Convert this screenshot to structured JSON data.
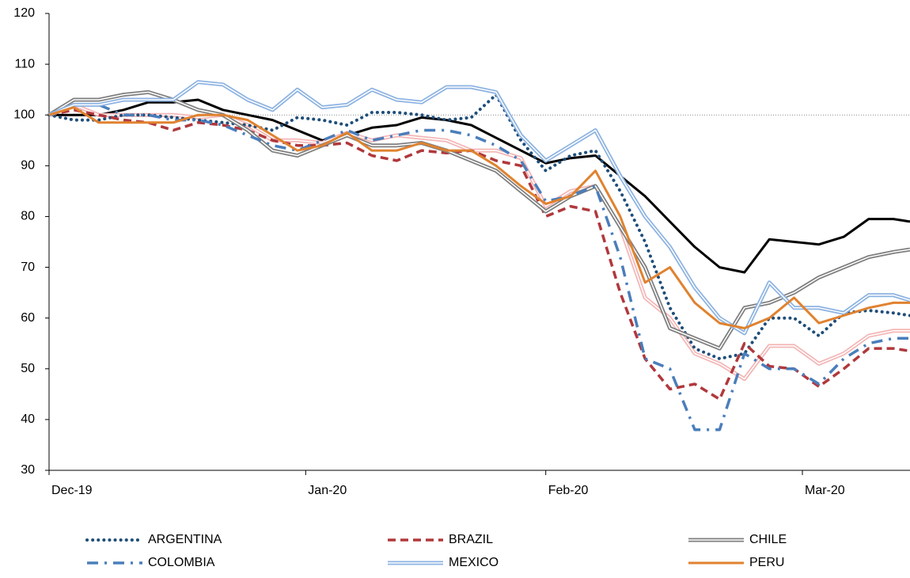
{
  "chart_data": {
    "type": "line",
    "x": [
      0,
      3,
      6,
      9,
      12,
      15,
      18,
      21,
      24,
      27,
      30,
      33,
      36,
      39,
      42,
      45,
      48,
      51,
      54,
      57,
      60,
      63,
      66,
      69,
      72,
      75,
      78,
      81,
      84,
      87,
      90,
      93,
      96,
      99,
      102,
      104
    ],
    "xlim": [
      0,
      104
    ],
    "xticks": [
      {
        "value": 0,
        "label": "Dec-19"
      },
      {
        "value": 31,
        "label": "Jan-20"
      },
      {
        "value": 60,
        "label": "Feb-20"
      },
      {
        "value": 91,
        "label": "Mar-20"
      }
    ],
    "ylim": [
      30,
      120
    ],
    "yticks": [
      30,
      40,
      50,
      60,
      70,
      80,
      90,
      100,
      110,
      120
    ],
    "reference_line": 100,
    "series": [
      {
        "color": "#000000",
        "style": "solid",
        "values": [
          100,
          100,
          100,
          101,
          102.5,
          102.5,
          103,
          101,
          100,
          99,
          97,
          95,
          96,
          97.5,
          98,
          99.5,
          99,
          98,
          95.5,
          93,
          90.5,
          91.5,
          92,
          88,
          84,
          79,
          74,
          70,
          69,
          75.5,
          75,
          74.5,
          76,
          79.5,
          79.5,
          79
        ]
      },
      {
        "color": "#f4b6b6",
        "style": "double",
        "values": [
          100,
          102,
          100,
          100,
          100,
          100,
          99.5,
          100,
          98,
          95,
          95,
          94.5,
          96.5,
          95,
          96,
          95.5,
          95,
          93,
          93,
          91.5,
          82,
          85,
          86,
          78,
          64,
          60,
          53,
          51,
          48,
          54.5,
          54.5,
          51,
          53,
          56.5,
          57.5,
          57.5
        ]
      },
      {
        "name": "ARGENTINA",
        "color": "#1f4e79",
        "style": "dotted",
        "values": [
          100,
          99,
          99,
          100,
          100,
          99.5,
          99,
          98.5,
          98,
          97,
          99.5,
          99,
          98,
          100.5,
          100.5,
          100,
          99,
          99.5,
          104,
          95,
          89,
          92,
          93,
          85,
          75,
          62,
          54,
          52,
          53,
          60,
          60,
          56.5,
          61,
          61.5,
          61,
          60.5
        ]
      },
      {
        "name": "BRAZIL",
        "color": "#b0383c",
        "style": "dashed",
        "values": [
          100,
          101,
          100,
          99,
          98.5,
          97,
          98.5,
          98,
          97,
          95,
          94,
          94,
          94.5,
          92,
          91,
          93,
          92.5,
          93,
          91,
          90,
          80,
          82,
          81,
          65,
          52,
          46,
          47,
          44,
          55,
          50.5,
          50,
          46.5,
          50,
          54,
          54,
          53.5
        ]
      },
      {
        "name": "CHILE",
        "color": "#7f7f7f",
        "style": "double",
        "values": [
          100,
          103,
          103,
          104,
          104.5,
          103,
          101,
          100,
          97,
          93,
          92,
          94,
          96,
          94,
          94,
          94.5,
          93,
          91,
          89,
          85,
          81,
          84,
          86,
          78,
          70,
          58,
          56,
          54,
          62,
          63,
          65,
          68,
          70,
          72,
          73,
          73.5
        ]
      },
      {
        "name": "COLOMBIA",
        "color": "#4a7ebb",
        "style": "dashdot",
        "values": [
          100,
          102,
          102,
          100,
          100,
          99,
          99,
          98,
          96,
          94,
          93,
          95,
          97,
          95,
          96,
          97,
          97,
          96,
          94,
          91,
          83,
          84,
          86,
          72,
          52,
          50,
          38,
          38,
          53,
          50,
          50,
          47,
          52,
          55,
          56,
          56
        ]
      },
      {
        "name": "MEXICO",
        "color": "#8db3e2",
        "style": "double",
        "values": [
          100,
          102,
          102,
          103,
          103,
          103,
          106.5,
          106,
          103,
          101,
          105,
          101.5,
          102,
          105,
          103,
          102.5,
          105.5,
          105.5,
          104.5,
          96,
          91,
          94,
          97,
          88,
          80,
          74,
          66,
          60,
          57,
          67,
          62,
          62,
          61,
          64.5,
          64.5,
          63.5
        ]
      },
      {
        "name": "PERU",
        "color": "#e0822f",
        "style": "solid",
        "values": [
          100,
          101.5,
          98.5,
          98.5,
          98.5,
          98.5,
          100,
          100,
          99,
          96,
          93,
          94,
          96.5,
          93,
          93,
          94.5,
          93,
          93,
          90,
          86,
          82.5,
          84,
          89,
          80,
          67,
          70,
          63,
          59,
          58,
          60,
          64,
          59,
          60.5,
          62,
          63,
          63
        ]
      }
    ]
  }
}
